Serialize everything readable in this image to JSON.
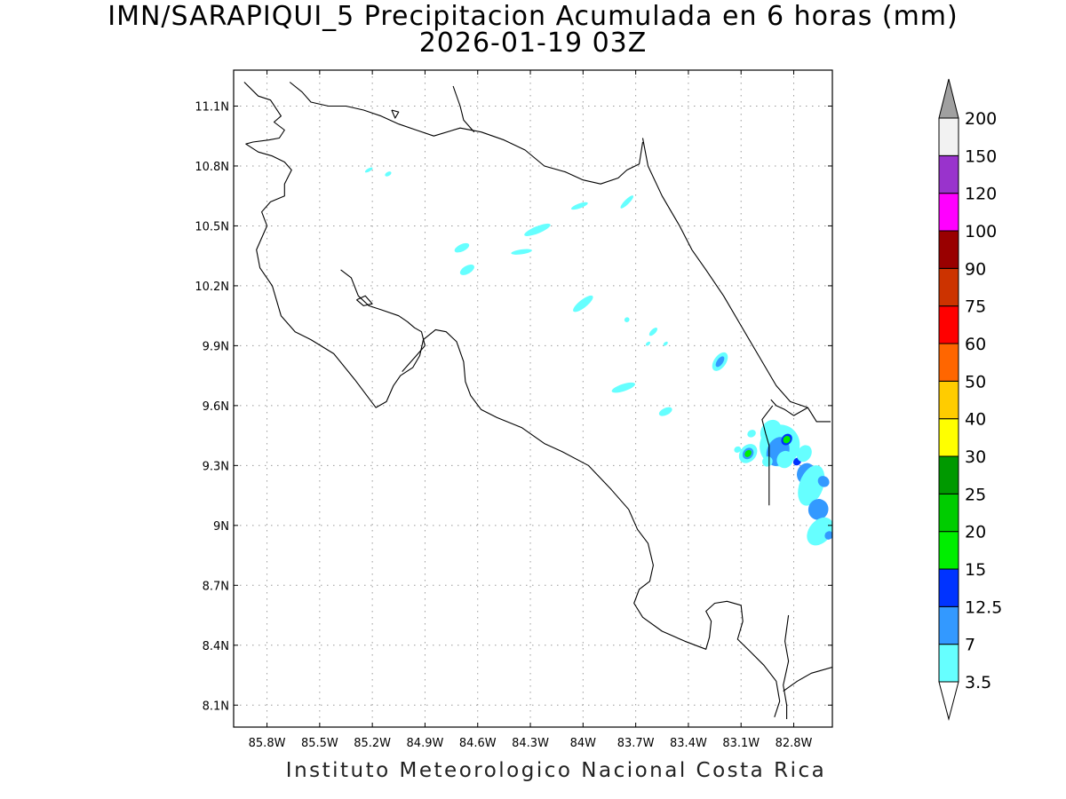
{
  "title": {
    "line1": "IMN/SARAPIQUI_5 Precipitacion Acumulada en 6 horas (mm)",
    "line2": "2026-01-19 03Z"
  },
  "footer": "Instituto Meteorologico Nacional Costa Rica",
  "map": {
    "lon_range": [
      -85.99,
      -82.58
    ],
    "lat_range": [
      7.99,
      11.28
    ],
    "lon_ticks": [
      {
        "value": -85.8,
        "label": "85.8W"
      },
      {
        "value": -85.5,
        "label": "85.5W"
      },
      {
        "value": -85.2,
        "label": "85.2W"
      },
      {
        "value": -84.9,
        "label": "84.9W"
      },
      {
        "value": -84.6,
        "label": "84.6W"
      },
      {
        "value": -84.3,
        "label": "84.3W"
      },
      {
        "value": -84.0,
        "label": "84W"
      },
      {
        "value": -83.7,
        "label": "83.7W"
      },
      {
        "value": -83.4,
        "label": "83.4W"
      },
      {
        "value": -83.1,
        "label": "83.1W"
      },
      {
        "value": -82.8,
        "label": "82.8W"
      }
    ],
    "lat_ticks": [
      {
        "value": 11.1,
        "label": "11.1N"
      },
      {
        "value": 10.8,
        "label": "10.8N"
      },
      {
        "value": 10.5,
        "label": "10.5N"
      },
      {
        "value": 10.2,
        "label": "10.2N"
      },
      {
        "value": 9.9,
        "label": "9.9N"
      },
      {
        "value": 9.6,
        "label": "9.6N"
      },
      {
        "value": 9.3,
        "label": "9.3N"
      },
      {
        "value": 9.0,
        "label": "9N"
      },
      {
        "value": 8.7,
        "label": "8.7N"
      },
      {
        "value": 8.4,
        "label": "8.4N"
      },
      {
        "value": 8.1,
        "label": "8.1N"
      }
    ],
    "grid": true
  },
  "colorbar": {
    "levels": [
      "3.5",
      "7",
      "12.5",
      "15",
      "20",
      "25",
      "30",
      "40",
      "50",
      "60",
      "75",
      "90",
      "100",
      "120",
      "150",
      "200"
    ],
    "colors": [
      "#ffffff",
      "#66ffff",
      "#3399ff",
      "#0033ff",
      "#00ee00",
      "#00cc00",
      "#009900",
      "#ffff00",
      "#ffcc00",
      "#ff6600",
      "#ff0000",
      "#cc3300",
      "#990000",
      "#ff00ff",
      "#9933cc",
      "#f2f2f2",
      "#a0a0a0"
    ]
  },
  "precip_cells": [
    {
      "lon": -85.22,
      "lat": 10.78,
      "w": 0.025,
      "h": 0.008,
      "rot": -30,
      "level": 1
    },
    {
      "lon": -85.11,
      "lat": 10.76,
      "w": 0.02,
      "h": 0.01,
      "rot": -30,
      "level": 1
    },
    {
      "lon": -84.69,
      "lat": 10.39,
      "w": 0.045,
      "h": 0.018,
      "rot": -25,
      "level": 1
    },
    {
      "lon": -84.66,
      "lat": 10.28,
      "w": 0.045,
      "h": 0.02,
      "rot": -30,
      "level": 1
    },
    {
      "lon": -84.26,
      "lat": 10.48,
      "w": 0.08,
      "h": 0.018,
      "rot": -22,
      "level": 1
    },
    {
      "lon": -84.35,
      "lat": 10.37,
      "w": 0.06,
      "h": 0.012,
      "rot": -8,
      "level": 1
    },
    {
      "lon": -84.02,
      "lat": 10.6,
      "w": 0.05,
      "h": 0.012,
      "rot": -20,
      "level": 1
    },
    {
      "lon": -83.75,
      "lat": 10.62,
      "w": 0.05,
      "h": 0.012,
      "rot": -45,
      "level": 1
    },
    {
      "lon": -84.0,
      "lat": 10.11,
      "w": 0.07,
      "h": 0.02,
      "rot": -38,
      "level": 1
    },
    {
      "lon": -83.75,
      "lat": 10.03,
      "w": 0.015,
      "h": 0.012,
      "rot": -40,
      "level": 1
    },
    {
      "lon": -83.6,
      "lat": 9.97,
      "w": 0.03,
      "h": 0.012,
      "rot": -45,
      "level": 1
    },
    {
      "lon": -83.63,
      "lat": 9.91,
      "w": 0.015,
      "h": 0.008,
      "rot": -40,
      "level": 1
    },
    {
      "lon": -83.53,
      "lat": 9.91,
      "w": 0.015,
      "h": 0.008,
      "rot": -40,
      "level": 1
    },
    {
      "lon": -83.22,
      "lat": 9.82,
      "w": 0.06,
      "h": 0.03,
      "rot": -55,
      "level": 1
    },
    {
      "lon": -83.22,
      "lat": 9.82,
      "w": 0.035,
      "h": 0.015,
      "rot": -55,
      "level": 2
    },
    {
      "lon": -83.77,
      "lat": 9.69,
      "w": 0.07,
      "h": 0.018,
      "rot": -18,
      "level": 1
    },
    {
      "lon": -83.53,
      "lat": 9.57,
      "w": 0.04,
      "h": 0.018,
      "rot": -25,
      "level": 1
    },
    {
      "lon": -83.04,
      "lat": 9.46,
      "w": 0.025,
      "h": 0.018,
      "rot": -30,
      "level": 1
    },
    {
      "lon": -83.12,
      "lat": 9.38,
      "w": 0.02,
      "h": 0.015,
      "rot": -30,
      "level": 1
    },
    {
      "lon": -83.06,
      "lat": 9.36,
      "w": 0.06,
      "h": 0.04,
      "rot": -50,
      "level": 1
    },
    {
      "lon": -83.06,
      "lat": 9.36,
      "w": 0.035,
      "h": 0.025,
      "rot": -50,
      "level": 2
    },
    {
      "lon": -83.06,
      "lat": 9.36,
      "w": 0.022,
      "h": 0.015,
      "rot": -50,
      "level": 4
    },
    {
      "lon": -82.93,
      "lat": 9.47,
      "w": 0.07,
      "h": 0.05,
      "rot": -60,
      "level": 1
    },
    {
      "lon": -82.88,
      "lat": 9.4,
      "w": 0.12,
      "h": 0.1,
      "rot": -70,
      "level": 1
    },
    {
      "lon": -82.89,
      "lat": 9.37,
      "w": 0.085,
      "h": 0.055,
      "rot": -70,
      "level": 2
    },
    {
      "lon": -82.84,
      "lat": 9.43,
      "w": 0.035,
      "h": 0.025,
      "rot": -50,
      "level": 3
    },
    {
      "lon": -82.84,
      "lat": 9.43,
      "w": 0.022,
      "h": 0.017,
      "rot": -50,
      "level": 4
    },
    {
      "lon": -82.78,
      "lat": 9.32,
      "w": 0.025,
      "h": 0.018,
      "rot": -40,
      "level": 3
    },
    {
      "lon": -82.74,
      "lat": 9.36,
      "w": 0.05,
      "h": 0.035,
      "rot": -60,
      "level": 1
    },
    {
      "lon": -82.73,
      "lat": 9.26,
      "w": 0.06,
      "h": 0.045,
      "rot": -70,
      "level": 2
    },
    {
      "lon": -82.7,
      "lat": 9.2,
      "w": 0.12,
      "h": 0.06,
      "rot": -70,
      "level": 1
    },
    {
      "lon": -82.63,
      "lat": 9.22,
      "w": 0.03,
      "h": 0.03,
      "rot": -50,
      "level": 2
    },
    {
      "lon": -82.66,
      "lat": 9.08,
      "w": 0.06,
      "h": 0.05,
      "rot": -70,
      "level": 2
    },
    {
      "lon": -82.65,
      "lat": 8.97,
      "w": 0.09,
      "h": 0.055,
      "rot": -50,
      "level": 1
    },
    {
      "lon": -82.6,
      "lat": 8.95,
      "w": 0.025,
      "h": 0.02,
      "rot": -50,
      "level": 2
    },
    {
      "lon": -82.85,
      "lat": 9.33,
      "w": 0.05,
      "h": 0.04,
      "rot": -60,
      "level": 1
    },
    {
      "lon": -82.95,
      "lat": 9.32,
      "w": 0.03,
      "h": 0.025,
      "rot": -40,
      "level": 1
    }
  ],
  "coastlines": [
    [
      [
        -85.93,
        11.22
      ],
      [
        -85.85,
        11.15
      ],
      [
        -85.78,
        11.13
      ],
      [
        -85.72,
        11.05
      ],
      [
        -85.76,
        11.02
      ],
      [
        -85.7,
        10.98
      ],
      [
        -85.73,
        10.94
      ],
      [
        -85.79,
        10.93
      ],
      [
        -85.88,
        10.92
      ],
      [
        -85.92,
        10.91
      ],
      [
        -85.85,
        10.87
      ],
      [
        -85.77,
        10.85
      ],
      [
        -85.7,
        10.82
      ],
      [
        -85.66,
        10.78
      ],
      [
        -85.7,
        10.71
      ],
      [
        -85.7,
        10.65
      ],
      [
        -85.78,
        10.62
      ],
      [
        -85.83,
        10.57
      ],
      [
        -85.8,
        10.5
      ],
      [
        -85.83,
        10.44
      ],
      [
        -85.86,
        10.38
      ],
      [
        -85.84,
        10.29
      ],
      [
        -85.77,
        10.2
      ],
      [
        -85.72,
        10.05
      ],
      [
        -85.64,
        9.97
      ],
      [
        -85.55,
        9.93
      ],
      [
        -85.42,
        9.86
      ],
      [
        -85.3,
        9.73
      ],
      [
        -85.18,
        9.59
      ],
      [
        -85.12,
        9.62
      ],
      [
        -85.08,
        9.7
      ],
      [
        -85.04,
        9.75
      ],
      [
        -84.97,
        9.79
      ],
      [
        -84.93,
        9.85
      ],
      [
        -84.91,
        9.93
      ],
      [
        -84.84,
        9.98
      ],
      [
        -84.78,
        9.97
      ],
      [
        -84.72,
        9.92
      ],
      [
        -84.68,
        9.82
      ],
      [
        -84.67,
        9.72
      ],
      [
        -84.64,
        9.65
      ],
      [
        -84.58,
        9.58
      ],
      [
        -84.49,
        9.54
      ],
      [
        -84.35,
        9.49
      ],
      [
        -84.22,
        9.41
      ],
      [
        -84.12,
        9.37
      ],
      [
        -83.97,
        9.3
      ],
      [
        -83.84,
        9.18
      ],
      [
        -83.74,
        9.08
      ],
      [
        -83.69,
        8.98
      ],
      [
        -83.63,
        8.91
      ],
      [
        -83.6,
        8.8
      ],
      [
        -83.62,
        8.72
      ],
      [
        -83.68,
        8.68
      ],
      [
        -83.71,
        8.61
      ],
      [
        -83.66,
        8.54
      ],
      [
        -83.55,
        8.47
      ],
      [
        -83.42,
        8.42
      ],
      [
        -83.3,
        8.38
      ],
      [
        -83.28,
        8.44
      ],
      [
        -83.27,
        8.52
      ],
      [
        -83.3,
        8.57
      ],
      [
        -83.25,
        8.61
      ],
      [
        -83.18,
        8.62
      ],
      [
        -83.1,
        8.6
      ],
      [
        -83.09,
        8.52
      ],
      [
        -83.12,
        8.43
      ],
      [
        -83.05,
        8.37
      ],
      [
        -82.97,
        8.3
      ],
      [
        -82.9,
        8.22
      ],
      [
        -82.88,
        8.12
      ],
      [
        -82.91,
        8.04
      ]
    ],
    [
      [
        -85.38,
        10.28
      ],
      [
        -85.32,
        10.24
      ],
      [
        -85.28,
        10.15
      ],
      [
        -85.22,
        10.1
      ],
      [
        -85.15,
        10.08
      ],
      [
        -85.05,
        10.05
      ],
      [
        -85.0,
        10.02
      ],
      [
        -84.96,
        9.99
      ],
      [
        -84.92,
        9.97
      ],
      [
        -84.9,
        9.9
      ],
      [
        -84.95,
        9.85
      ],
      [
        -85.03,
        9.77
      ]
    ],
    [
      [
        -85.29,
        10.13
      ],
      [
        -85.25,
        10.1
      ],
      [
        -85.2,
        10.11
      ],
      [
        -85.24,
        10.15
      ],
      [
        -85.29,
        10.13
      ]
    ],
    [
      [
        -85.67,
        11.22
      ],
      [
        -85.6,
        11.17
      ],
      [
        -85.55,
        11.12
      ],
      [
        -85.45,
        11.1
      ],
      [
        -85.35,
        11.1
      ],
      [
        -85.25,
        11.08
      ],
      [
        -85.15,
        11.05
      ],
      [
        -85.05,
        11.01
      ],
      [
        -84.95,
        10.98
      ],
      [
        -84.85,
        10.95
      ],
      [
        -84.7,
        10.99
      ],
      [
        -84.58,
        10.97
      ],
      [
        -84.45,
        10.93
      ],
      [
        -84.33,
        10.88
      ],
      [
        -84.22,
        10.8
      ],
      [
        -84.1,
        10.77
      ],
      [
        -84.0,
        10.73
      ],
      [
        -83.9,
        10.71
      ],
      [
        -83.8,
        10.74
      ],
      [
        -83.75,
        10.78
      ],
      [
        -83.68,
        10.81
      ],
      [
        -83.66,
        10.92
      ]
    ],
    [
      [
        -83.66,
        10.94
      ],
      [
        -83.63,
        10.8
      ],
      [
        -83.55,
        10.65
      ],
      [
        -83.45,
        10.5
      ],
      [
        -83.38,
        10.38
      ],
      [
        -83.3,
        10.28
      ],
      [
        -83.2,
        10.15
      ],
      [
        -83.1,
        10.0
      ],
      [
        -83.0,
        9.85
      ],
      [
        -82.9,
        9.7
      ],
      [
        -82.82,
        9.62
      ],
      [
        -82.72,
        9.59
      ],
      [
        -82.67,
        9.52
      ],
      [
        -82.59,
        9.52
      ]
    ],
    [
      [
        -84.74,
        11.2
      ],
      [
        -84.7,
        11.1
      ],
      [
        -84.68,
        11.03
      ],
      [
        -84.62,
        10.97
      ]
    ],
    [
      [
        -85.09,
        11.08
      ],
      [
        -85.07,
        11.04
      ],
      [
        -85.05,
        11.07
      ],
      [
        -85.09,
        11.08
      ]
    ],
    [
      [
        -82.92,
        9.6
      ],
      [
        -82.98,
        9.53
      ],
      [
        -82.96,
        9.46
      ],
      [
        -82.94,
        9.4
      ],
      [
        -82.94,
        9.1
      ]
    ],
    [
      [
        -82.72,
        9.59
      ],
      [
        -82.8,
        9.55
      ],
      [
        -82.85,
        9.58
      ],
      [
        -82.9,
        9.6
      ],
      [
        -82.93,
        9.63
      ]
    ],
    [
      [
        -82.84,
        8.03
      ],
      [
        -82.84,
        8.1
      ],
      [
        -82.86,
        8.2
      ],
      [
        -82.83,
        8.32
      ],
      [
        -82.85,
        8.42
      ],
      [
        -82.83,
        8.55
      ]
    ],
    [
      [
        -82.58,
        8.29
      ],
      [
        -82.7,
        8.26
      ],
      [
        -82.78,
        8.22
      ],
      [
        -82.86,
        8.17
      ]
    ]
  ]
}
